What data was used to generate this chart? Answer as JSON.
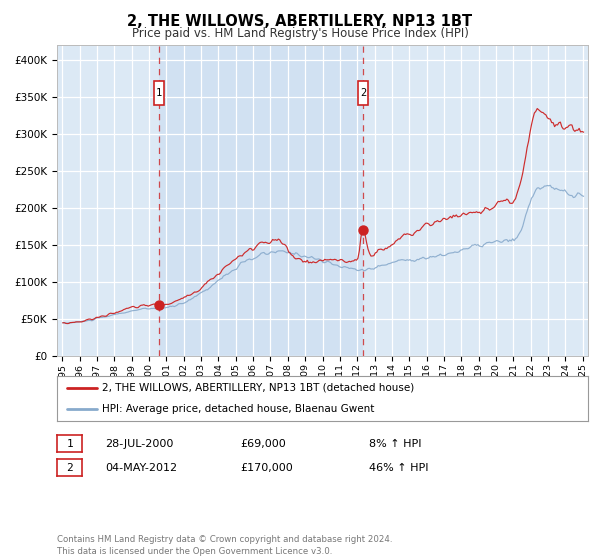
{
  "title": "2, THE WILLOWS, ABERTILLERY, NP13 1BT",
  "subtitle": "Price paid vs. HM Land Registry's House Price Index (HPI)",
  "legend_line1": "2, THE WILLOWS, ABERTILLERY, NP13 1BT (detached house)",
  "legend_line2": "HPI: Average price, detached house, Blaenau Gwent",
  "annotation1_date": "28-JUL-2000",
  "annotation1_price": "£69,000",
  "annotation1_hpi": "8% ↑ HPI",
  "annotation1_year": 2000.57,
  "annotation1_value": 69000,
  "annotation2_date": "04-MAY-2012",
  "annotation2_price": "£170,000",
  "annotation2_hpi": "46% ↑ HPI",
  "annotation2_year": 2012.34,
  "annotation2_value": 170000,
  "footer": "Contains HM Land Registry data © Crown copyright and database right 2024.\nThis data is licensed under the Open Government Licence v3.0.",
  "ylim": [
    0,
    420000
  ],
  "xlim_start": 1994.7,
  "xlim_end": 2025.3,
  "plot_bg_color": "#dce9f5",
  "shade_color": "#c8daf0",
  "grid_color": "#ffffff",
  "line_color_red": "#cc2222",
  "line_color_blue": "#88aacc",
  "vline_color": "#cc2222",
  "vline_style": "--",
  "yticks": [
    0,
    50000,
    100000,
    150000,
    200000,
    250000,
    300000,
    350000,
    400000
  ],
  "ytick_labels": [
    "£0",
    "£50K",
    "£100K",
    "£150K",
    "£200K",
    "£250K",
    "£300K",
    "£350K",
    "£400K"
  ],
  "xtick_years": [
    1995,
    1996,
    1997,
    1998,
    1999,
    2000,
    2001,
    2002,
    2003,
    2004,
    2005,
    2006,
    2007,
    2008,
    2009,
    2010,
    2011,
    2012,
    2013,
    2014,
    2015,
    2016,
    2017,
    2018,
    2019,
    2020,
    2021,
    2022,
    2023,
    2024,
    2025
  ]
}
